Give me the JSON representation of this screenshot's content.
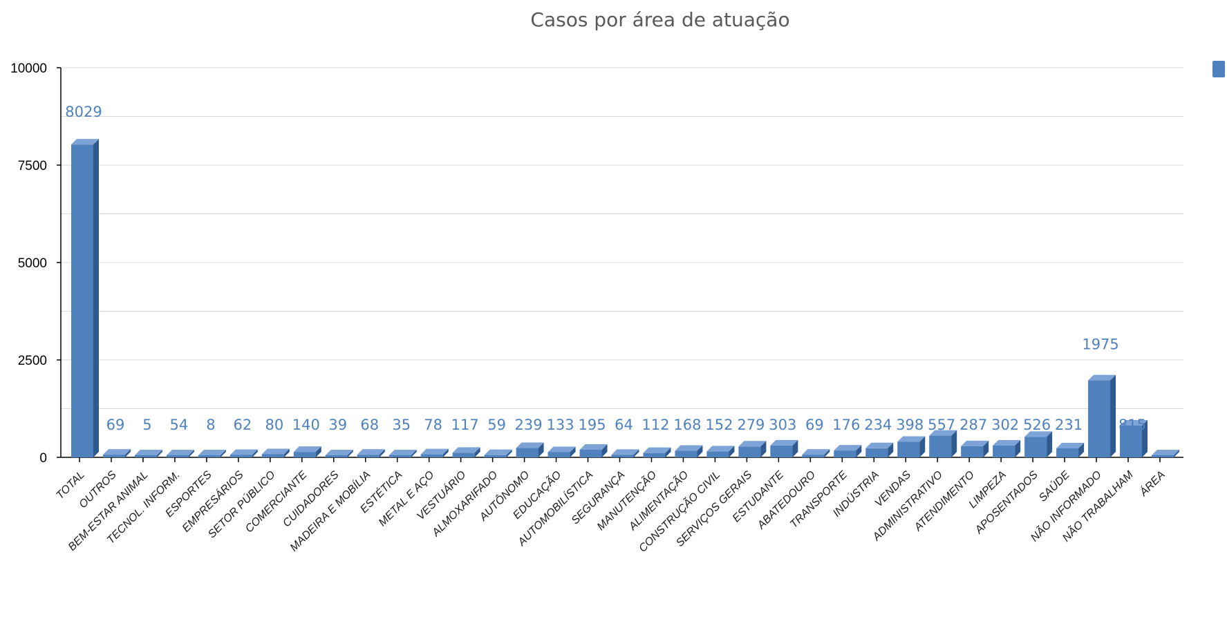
{
  "chart_data": {
    "type": "bar",
    "title": "Casos por área de atuação",
    "xlabel": "",
    "ylabel": "",
    "ylim": [
      0,
      10000
    ],
    "yticks": [
      0,
      2500,
      5000,
      7500,
      10000
    ],
    "grid": true,
    "legend_position": "top-right",
    "bar_color": "#4f81bd",
    "bar_side_color": "#2f5a8f",
    "bar_top_color": "#7ea3d6",
    "label_color": "#4f81bd",
    "categories": [
      "TOTAL",
      "OUTROS",
      "BEM-ESTAR ANIMAL",
      "TECNOL. INFORM.",
      "ESPORTES",
      "EMPRESÁRIOS",
      "SETOR PÚBLICO",
      "COMERCIANTE",
      "CUIDADORES",
      "MADEIRA E MOBÍLIA",
      "ESTÉTICA",
      "METAL E AÇO",
      "VESTUÁRIO",
      "ALMOXARIFADO",
      "AUTÔNOMO",
      "EDUCAÇÃO",
      "AUTOMOBILÍSTICA",
      "SEGURANÇA",
      "MANUTENÇÃO",
      "ALIMENTAÇÃO",
      "CONSTRUÇÃO CIVIL",
      "SERVIÇOS GERAIS",
      "ESTUDANTE",
      "ABATEDOURO",
      "TRANSPORTE",
      "INDÚSTRIA",
      "VENDAS",
      "ADMINISTRATIVO",
      "ATENDIMENTO",
      "LIMPEZA",
      "APOSENTADOS",
      "SAÚDE",
      "NÃO INFORMADO",
      "NÃO TRABALHAM",
      "ÁREA"
    ],
    "values": [
      8029,
      69,
      5,
      54,
      8,
      62,
      80,
      140,
      39,
      68,
      35,
      78,
      117,
      59,
      239,
      133,
      195,
      64,
      112,
      168,
      152,
      279,
      303,
      69,
      176,
      234,
      398,
      557,
      287,
      302,
      526,
      231,
      1975,
      815,
      null
    ]
  }
}
